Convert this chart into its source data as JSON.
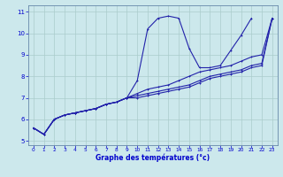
{
  "xlabel": "Graphe des températures (°c)",
  "hours": [
    0,
    1,
    2,
    3,
    4,
    5,
    6,
    7,
    8,
    9,
    10,
    11,
    12,
    13,
    14,
    15,
    16,
    17,
    18,
    19,
    20,
    21,
    22,
    23
  ],
  "line1": [
    5.6,
    5.3,
    6.0,
    6.2,
    6.3,
    6.4,
    6.5,
    6.7,
    6.8,
    7.0,
    7.8,
    10.2,
    10.7,
    10.8,
    10.7,
    9.3,
    8.4,
    8.4,
    8.5,
    9.2,
    9.9,
    10.7,
    null,
    null
  ],
  "line2": [
    5.6,
    5.3,
    6.0,
    6.2,
    6.3,
    6.4,
    6.5,
    6.7,
    6.8,
    7.0,
    7.2,
    7.4,
    7.5,
    7.6,
    7.8,
    8.0,
    8.2,
    8.3,
    8.4,
    8.5,
    8.7,
    8.9,
    9.0,
    10.7
  ],
  "line3": [
    5.6,
    5.3,
    6.0,
    6.2,
    6.3,
    6.4,
    6.5,
    6.7,
    6.8,
    7.0,
    7.1,
    7.2,
    7.3,
    7.4,
    7.5,
    7.6,
    7.8,
    8.0,
    8.1,
    8.2,
    8.3,
    8.5,
    8.6,
    10.7
  ],
  "line4": [
    5.6,
    5.3,
    6.0,
    6.2,
    6.3,
    6.4,
    6.5,
    6.7,
    6.8,
    7.0,
    7.0,
    7.1,
    7.2,
    7.3,
    7.4,
    7.5,
    7.7,
    7.9,
    8.0,
    8.1,
    8.2,
    8.4,
    8.5,
    10.7
  ],
  "line_color": "#2222aa",
  "bg_color": "#cce8ec",
  "grid_color": "#aacccc",
  "axis_label_color": "#0000cc",
  "ylim": [
    4.8,
    11.3
  ],
  "xlim": [
    -0.5,
    23.5
  ],
  "yticks": [
    5,
    6,
    7,
    8,
    9,
    10,
    11
  ],
  "xticks": [
    0,
    1,
    2,
    3,
    4,
    5,
    6,
    7,
    8,
    9,
    10,
    11,
    12,
    13,
    14,
    15,
    16,
    17,
    18,
    19,
    20,
    21,
    22,
    23
  ]
}
